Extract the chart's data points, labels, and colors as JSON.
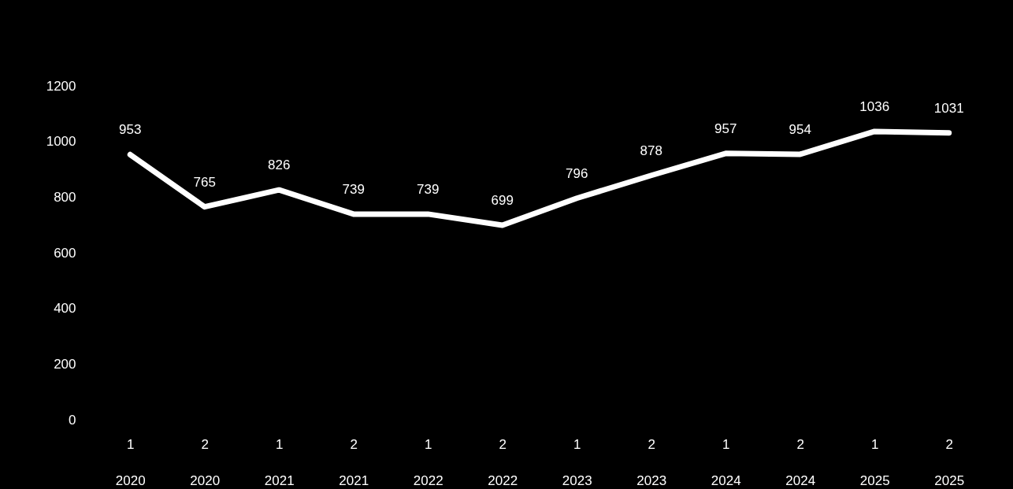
{
  "chart_data": {
    "type": "line",
    "categories": [
      "1\n2020",
      "2\n2020",
      "1\n2021",
      "2\n2021",
      "1\n2022",
      "2\n2022",
      "1\n2023",
      "2\n2023",
      "1\n2024",
      "2\n2024",
      "1\n2025",
      "2\n2025"
    ],
    "series": [
      {
        "color": "#ffffff",
        "values": [
          953,
          765,
          826,
          739,
          739,
          699,
          796,
          878,
          957,
          954,
          1036,
          1031
        ]
      }
    ],
    "ylim": [
      0,
      1200
    ],
    "yticks": [
      0,
      200,
      400,
      600,
      800,
      1000,
      1200
    ],
    "data_labels": true
  }
}
